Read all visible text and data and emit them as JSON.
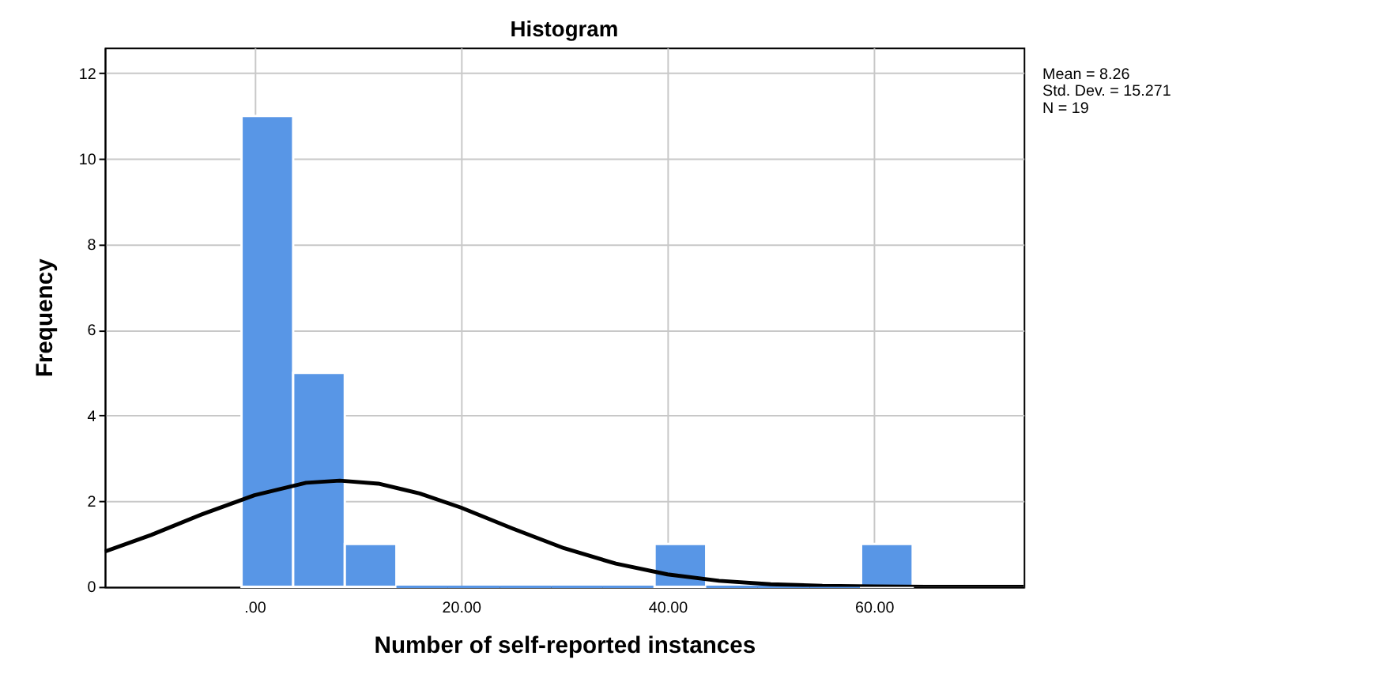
{
  "chart_data": {
    "type": "histogram",
    "title": "Histogram",
    "xlabel": "Number of self-reported instances",
    "ylabel": "Frequency",
    "bins": [
      -1.25,
      3.75,
      8.75,
      13.75,
      18.75,
      23.75,
      28.75,
      33.75,
      38.75,
      43.75,
      48.75,
      53.75,
      58.75,
      63.75
    ],
    "values": [
      11,
      5,
      1,
      0,
      0,
      0,
      0,
      0,
      1,
      0,
      0,
      0,
      1
    ],
    "color": "#5896e6",
    "series": [
      {
        "type": "line",
        "color": "#000000",
        "x": [
          -14.5,
          -10,
          -5,
          0,
          5,
          8.26,
          12,
          16,
          20,
          25,
          30,
          35,
          40,
          45,
          50,
          55,
          60,
          65,
          74.5
        ],
        "values": [
          0.82,
          1.21,
          1.7,
          2.14,
          2.43,
          2.48,
          2.41,
          2.18,
          1.85,
          1.36,
          0.9,
          0.54,
          0.29,
          0.14,
          0.06,
          0.02,
          0.01,
          0,
          0
        ]
      }
    ],
    "xlim": [
      -14.5,
      74.5
    ],
    "xticks": [
      {
        "value": 0,
        "label": ".00"
      },
      {
        "value": 20,
        "label": "20.00"
      },
      {
        "value": 40,
        "label": "40.00"
      },
      {
        "value": 60,
        "label": "60.00"
      }
    ],
    "ylim": [
      0,
      12.6
    ],
    "yticks": [
      0,
      2,
      4,
      6,
      8,
      10,
      12
    ],
    "grid": true,
    "annotations": [
      "Mean = 8.26",
      "Std. Dev. = 15.271",
      "N = 19"
    ]
  }
}
